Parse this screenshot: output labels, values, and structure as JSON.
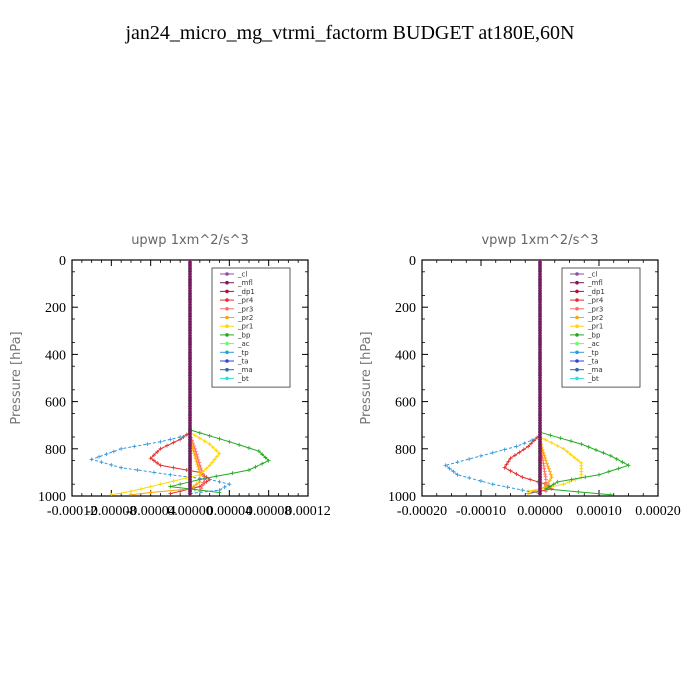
{
  "title": "jan24_micro_mg_vtrmi_factorm  BUDGET at180E,60N",
  "chart_data": [
    {
      "type": "line",
      "title": "upwp   1xm^2/s^3",
      "ylabel": "Pressure [hPa]",
      "ylim": [
        1000,
        0
      ],
      "yticks": [
        "0",
        "200",
        "400",
        "600",
        "800",
        "1000"
      ],
      "xlim": [
        -0.00012,
        0.00012
      ],
      "xticks": [
        "-0.00012",
        "-0.00008",
        "-0.00004",
        "0.00000",
        "0.00004",
        "0.00008",
        "0.00012"
      ],
      "legend_placement": "top-right",
      "series": [
        {
          "name": "_cl",
          "color": "#8b4fa8",
          "points": [
            [
              0,
              0
            ],
            [
              0,
              500
            ],
            [
              0,
              990
            ]
          ]
        },
        {
          "name": "_mfl",
          "color": "#7a1a5a",
          "points": [
            [
              0,
              0
            ],
            [
              0,
              500
            ],
            [
              0,
              990
            ]
          ]
        },
        {
          "name": "_dp1",
          "color": "#b0103a",
          "points": [
            [
              0,
              0
            ],
            [
              0,
              500
            ],
            [
              0,
              990
            ]
          ]
        },
        {
          "name": "_pr4",
          "color": "#e03030",
          "points": [
            [
              0,
              730
            ],
            [
              -1e-05,
              760
            ],
            [
              -3e-05,
              800
            ],
            [
              -4e-05,
              840
            ],
            [
              -3e-05,
              870
            ],
            [
              1e-05,
              900
            ],
            [
              2e-05,
              930
            ],
            [
              1e-05,
              960
            ],
            [
              -2e-05,
              990
            ]
          ]
        },
        {
          "name": "_pr3",
          "color": "#ff6a6a",
          "points": [
            [
              0,
              740
            ],
            [
              5e-06,
              800
            ],
            [
              1e-05,
              870
            ],
            [
              1.5e-05,
              930
            ],
            [
              1e-05,
              980
            ]
          ]
        },
        {
          "name": "_pr2",
          "color": "#ffa500",
          "points": [
            [
              0,
              760
            ],
            [
              5e-06,
              830
            ],
            [
              1e-05,
              900
            ],
            [
              1e-05,
              940
            ],
            [
              0,
              970
            ],
            [
              -4e-05,
              985
            ],
            [
              -6e-05,
              995
            ]
          ]
        },
        {
          "name": "_pr1",
          "color": "#ffd700",
          "points": [
            [
              0,
              730
            ],
            [
              2e-05,
              780
            ],
            [
              3e-05,
              820
            ],
            [
              2e-05,
              870
            ],
            [
              1e-05,
              910
            ],
            [
              -3e-05,
              950
            ],
            [
              -6e-05,
              980
            ],
            [
              -8e-05,
              995
            ]
          ]
        },
        {
          "name": "_bp",
          "color": "#22aa22",
          "points": [
            [
              0,
              720
            ],
            [
              4e-05,
              770
            ],
            [
              7e-05,
              810
            ],
            [
              8e-05,
              850
            ],
            [
              6e-05,
              890
            ],
            [
              1e-05,
              930
            ],
            [
              -2e-05,
              960
            ],
            [
              3e-05,
              985
            ]
          ]
        },
        {
          "name": "_ac",
          "color": "#66ff66",
          "points": [
            [
              0,
              760
            ],
            [
              0,
              900
            ],
            [
              0,
              990
            ]
          ]
        },
        {
          "name": "_tp",
          "color": "#3399dd",
          "points": [
            [
              0,
              740
            ],
            [
              -3e-05,
              770
            ],
            [
              -7e-05,
              800
            ],
            [
              -0.0001,
              845
            ],
            [
              -7e-05,
              880
            ],
            [
              -2e-05,
              910
            ],
            [
              2e-05,
              930
            ],
            [
              4e-05,
              950
            ],
            [
              3e-05,
              975
            ],
            [
              0,
              990
            ]
          ]
        },
        {
          "name": "_ta",
          "color": "#3344cc",
          "points": [
            [
              0,
              0
            ],
            [
              0,
              500
            ],
            [
              0,
              990
            ]
          ]
        },
        {
          "name": "_ma",
          "color": "#3366aa",
          "points": [
            [
              0,
              0
            ],
            [
              0,
              500
            ],
            [
              0,
              990
            ]
          ]
        },
        {
          "name": "_bt",
          "color": "#33dddd",
          "points": [
            [
              0,
              0
            ],
            [
              0,
              500
            ],
            [
              0,
              990
            ]
          ]
        }
      ]
    },
    {
      "type": "line",
      "title": "vpwp   1xm^2/s^3",
      "ylabel": "Pressure [hPa]",
      "ylim": [
        1000,
        0
      ],
      "yticks": [
        "0",
        "200",
        "400",
        "600",
        "800",
        "1000"
      ],
      "xlim": [
        -0.0002,
        0.0002
      ],
      "xticks": [
        "-0.00020",
        "-0.00010",
        "0.00000",
        "0.00010",
        "0.00020"
      ],
      "legend_placement": "top-right",
      "series": [
        {
          "name": "_cl",
          "color": "#8b4fa8",
          "points": [
            [
              0,
              0
            ],
            [
              0,
              500
            ],
            [
              0,
              990
            ]
          ]
        },
        {
          "name": "_mfl",
          "color": "#7a1a5a",
          "points": [
            [
              0,
              0
            ],
            [
              0,
              500
            ],
            [
              0,
              990
            ]
          ]
        },
        {
          "name": "_dp1",
          "color": "#b0103a",
          "points": [
            [
              0,
              0
            ],
            [
              0,
              500
            ],
            [
              0,
              990
            ]
          ]
        },
        {
          "name": "_pr4",
          "color": "#e03030",
          "points": [
            [
              0,
              740
            ],
            [
              -2e-05,
              790
            ],
            [
              -5e-05,
              840
            ],
            [
              -6e-05,
              880
            ],
            [
              -3e-05,
              920
            ],
            [
              1e-05,
              950
            ],
            [
              2e-05,
              970
            ],
            [
              -2e-05,
              990
            ]
          ]
        },
        {
          "name": "_pr3",
          "color": "#ff6a6a",
          "points": [
            [
              0,
              760
            ],
            [
              5e-06,
              850
            ],
            [
              1e-05,
              930
            ],
            [
              1e-05,
              980
            ]
          ]
        },
        {
          "name": "_pr2",
          "color": "#ffa500",
          "points": [
            [
              0,
              770
            ],
            [
              1e-05,
              850
            ],
            [
              2e-05,
              920
            ],
            [
              1e-05,
              960
            ],
            [
              -2e-05,
              990
            ]
          ]
        },
        {
          "name": "_pr1",
          "color": "#ffd700",
          "points": [
            [
              0,
              750
            ],
            [
              4e-05,
              800
            ],
            [
              7e-05,
              860
            ],
            [
              7e-05,
              920
            ],
            [
              4e-05,
              950
            ],
            [
              -2e-05,
              980
            ]
          ]
        },
        {
          "name": "_bp",
          "color": "#22aa22",
          "points": [
            [
              0,
              730
            ],
            [
              7e-05,
              780
            ],
            [
              0.00012,
              830
            ],
            [
              0.00015,
              870
            ],
            [
              0.0001,
              910
            ],
            [
              3e-05,
              940
            ],
            [
              1e-05,
              970
            ],
            [
              0.00012,
              995
            ]
          ]
        },
        {
          "name": "_ac",
          "color": "#66ff66",
          "points": [
            [
              0,
              760
            ],
            [
              0,
              900
            ],
            [
              0,
              990
            ]
          ]
        },
        {
          "name": "_tp",
          "color": "#3399dd",
          "points": [
            [
              0,
              750
            ],
            [
              -4e-05,
              790
            ],
            [
              -0.0001,
              830
            ],
            [
              -0.00016,
              870
            ],
            [
              -0.00014,
              910
            ],
            [
              -8e-05,
              950
            ],
            [
              -3e-05,
              975
            ],
            [
              0,
              990
            ]
          ]
        },
        {
          "name": "_ta",
          "color": "#3344cc",
          "points": [
            [
              0,
              0
            ],
            [
              0,
              500
            ],
            [
              0,
              990
            ]
          ]
        },
        {
          "name": "_ma",
          "color": "#3366aa",
          "points": [
            [
              0,
              0
            ],
            [
              0,
              500
            ],
            [
              0,
              990
            ]
          ]
        },
        {
          "name": "_bt",
          "color": "#33dddd",
          "points": [
            [
              0,
              0
            ],
            [
              0,
              500
            ],
            [
              0,
              990
            ]
          ]
        }
      ]
    }
  ]
}
